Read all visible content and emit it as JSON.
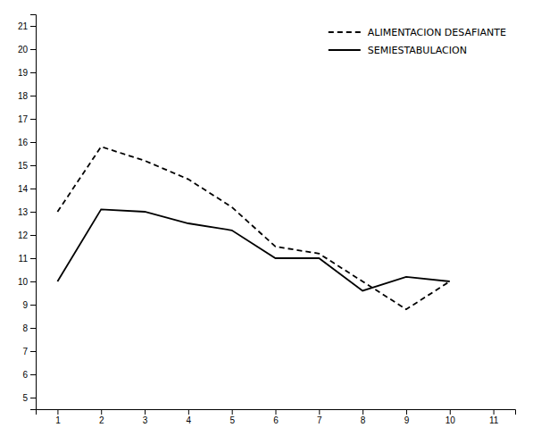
{
  "chart_data": {
    "type": "line",
    "x": [
      1,
      2,
      3,
      4,
      5,
      6,
      7,
      8,
      9,
      10
    ],
    "series": [
      {
        "name": "ALIMENTACION DESAFIANTE",
        "color": "#000000",
        "line_style": "dashed",
        "values": [
          13.0,
          15.8,
          15.2,
          14.4,
          13.2,
          11.5,
          11.2,
          10.0,
          8.8,
          10.0
        ]
      },
      {
        "name": "SEMIESTABULACION",
        "color": "#000000",
        "line_style": "solid",
        "values": [
          10.0,
          13.1,
          13.0,
          12.5,
          12.2,
          11.0,
          11.0,
          9.6,
          10.2,
          10.0
        ]
      }
    ],
    "xlim": [
      0.5,
      11.5
    ],
    "ylim": [
      4.5,
      21.5
    ],
    "xticks": [
      1,
      2,
      3,
      4,
      5,
      6,
      7,
      8,
      9,
      10,
      11
    ],
    "yticks": [
      5,
      6,
      7,
      8,
      9,
      10,
      11,
      12,
      13,
      14,
      15,
      16,
      17,
      18,
      19,
      20,
      21
    ],
    "legend": "upper right"
  }
}
